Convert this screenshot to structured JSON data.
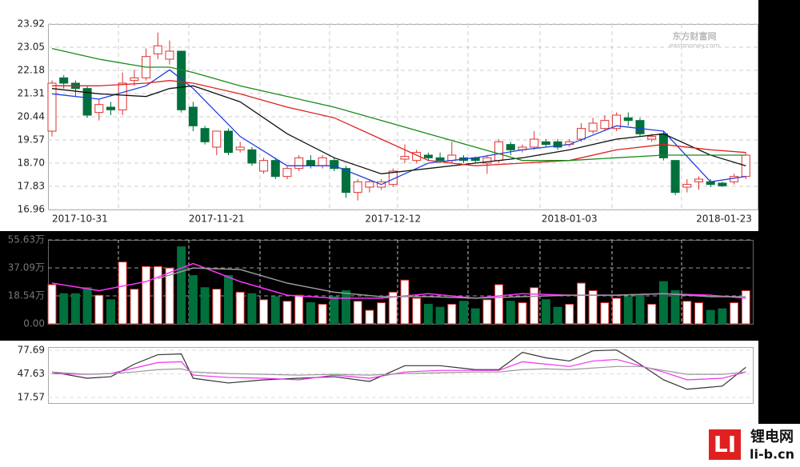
{
  "chart_data": {
    "type": "candlestick",
    "watermark": [
      "东方财富网",
      "eastmoney.com"
    ],
    "logo": [
      "锂电网",
      "li-b.cn"
    ],
    "categories": [
      "2017-10-31",
      null,
      null,
      null,
      null,
      null,
      null,
      null,
      null,
      null,
      null,
      null,
      null,
      null,
      "2017-11-21",
      null,
      null,
      null,
      null,
      null,
      null,
      null,
      null,
      null,
      null,
      null,
      null,
      null,
      null,
      "2017-12-12",
      null,
      null,
      null,
      null,
      null,
      null,
      null,
      null,
      null,
      null,
      null,
      null,
      null,
      null,
      "2018-01-03",
      null,
      null,
      null,
      null,
      null,
      null,
      null,
      null,
      null,
      null,
      null,
      null,
      null,
      null,
      "2018-01-23"
    ],
    "open": [
      19.9,
      21.9,
      21.7,
      21.5,
      20.6,
      20.8,
      20.7,
      21.8,
      21.9,
      22.8,
      22.6,
      22.9,
      20.8,
      20.0,
      19.3,
      19.9,
      19.2,
      19.2,
      18.4,
      18.8,
      18.2,
      18.5,
      18.8,
      18.6,
      18.8,
      18.5,
      17.6,
      17.8,
      17.8,
      17.9,
      18.85,
      18.8,
      19.0,
      18.9,
      18.8,
      18.9,
      18.9,
      18.7,
      18.8,
      19.4,
      19.2,
      19.3,
      19.5,
      19.5,
      19.4,
      19.6,
      19.9,
      20.0,
      20.0,
      20.4,
      20.3,
      19.6,
      19.8,
      18.8,
      17.8,
      18.0,
      18.0,
      17.95,
      18.0,
      18.2
    ],
    "high": [
      21.8,
      22.0,
      21.8,
      21.6,
      21.1,
      21.0,
      22.1,
      22.2,
      23.0,
      23.6,
      23.3,
      22.9,
      21.0,
      20.1,
      19.9,
      20.0,
      19.5,
      19.3,
      18.9,
      18.9,
      18.6,
      19.0,
      19.0,
      19.0,
      18.9,
      18.6,
      18.1,
      18.1,
      18.1,
      18.5,
      19.4,
      19.2,
      19.1,
      19.1,
      19.5,
      19.0,
      18.95,
      19.0,
      19.6,
      19.5,
      19.4,
      19.9,
      19.6,
      19.6,
      19.6,
      20.2,
      20.4,
      20.5,
      20.6,
      20.6,
      20.4,
      19.8,
      19.9,
      18.8,
      18.1,
      18.2,
      18.1,
      18.0,
      18.3,
      19.1
    ],
    "low": [
      19.7,
      21.5,
      21.2,
      20.4,
      20.3,
      20.5,
      20.5,
      21.6,
      21.8,
      22.6,
      22.4,
      20.6,
      19.9,
      19.4,
      19.0,
      19.0,
      19.1,
      18.6,
      18.3,
      18.1,
      18.1,
      18.4,
      18.5,
      18.5,
      18.4,
      17.4,
      17.3,
      17.6,
      17.7,
      17.8,
      18.7,
      18.7,
      18.8,
      18.7,
      18.7,
      18.7,
      18.7,
      18.3,
      18.7,
      19.0,
      19.1,
      19.2,
      19.3,
      19.2,
      19.3,
      19.5,
      19.8,
      19.9,
      19.9,
      20.1,
      19.7,
      19.5,
      18.8,
      17.5,
      17.6,
      17.7,
      17.8,
      17.8,
      17.9,
      18.1
    ],
    "close": [
      21.7,
      21.7,
      21.5,
      20.5,
      20.9,
      20.7,
      21.7,
      21.9,
      22.7,
      23.1,
      22.9,
      20.7,
      20.1,
      19.5,
      19.9,
      19.1,
      19.3,
      18.7,
      18.8,
      18.2,
      18.5,
      18.9,
      18.6,
      18.9,
      18.5,
      17.6,
      18.0,
      18.0,
      18.0,
      18.4,
      18.95,
      19.1,
      18.9,
      18.8,
      19.0,
      18.8,
      18.8,
      18.9,
      19.5,
      19.2,
      19.3,
      19.6,
      19.4,
      19.3,
      19.5,
      20.0,
      20.2,
      20.3,
      20.5,
      20.3,
      19.8,
      19.7,
      18.9,
      17.6,
      17.9,
      18.1,
      17.9,
      17.85,
      18.2,
      19.0
    ],
    "up_color": "#e0302f",
    "down_color": "#00703c",
    "ylim": [
      16.96,
      23.92
    ],
    "yticks": [
      16.96,
      17.83,
      {
        "value": 18.7,
        "label": "18.70"
      },
      19.57,
      20.44,
      21.31,
      22.18,
      23.05,
      23.92
    ],
    "series": [
      {
        "color": "#1f3fe0",
        "x": [
          0,
          4,
          8,
          10,
          12,
          16,
          20,
          24,
          28,
          32,
          36,
          40,
          44,
          48,
          52,
          56,
          59
        ],
        "values": [
          21.3,
          21.1,
          21.6,
          22.2,
          21.5,
          19.7,
          18.6,
          18.6,
          17.9,
          18.7,
          18.9,
          19.2,
          19.4,
          20.1,
          19.9,
          18.0,
          18.2
        ]
      },
      {
        "color": "#111111",
        "x": [
          0,
          4,
          8,
          10,
          12,
          16,
          20,
          24,
          28,
          32,
          36,
          40,
          44,
          48,
          52,
          56,
          59
        ],
        "values": [
          21.5,
          21.3,
          21.2,
          21.5,
          21.6,
          21.0,
          19.8,
          18.9,
          18.3,
          18.5,
          18.7,
          18.9,
          19.2,
          19.6,
          19.8,
          19.0,
          18.6
        ]
      },
      {
        "color": "#e02020",
        "x": [
          0,
          4,
          8,
          10,
          12,
          16,
          20,
          24,
          28,
          32,
          36,
          40,
          44,
          48,
          52,
          56,
          59
        ],
        "values": [
          21.6,
          21.6,
          21.7,
          21.8,
          21.7,
          21.3,
          20.8,
          20.4,
          19.6,
          18.8,
          18.6,
          18.7,
          18.8,
          19.2,
          19.4,
          19.2,
          19.1
        ]
      },
      {
        "color": "#1a8a1a",
        "x": [
          0,
          4,
          8,
          10,
          12,
          16,
          20,
          24,
          28,
          32,
          36,
          40,
          44,
          48,
          52,
          56,
          59
        ],
        "values": [
          23.0,
          22.6,
          22.3,
          22.3,
          22.1,
          21.6,
          21.2,
          20.8,
          20.3,
          19.8,
          19.3,
          18.8,
          18.8,
          18.9,
          19.0,
          19.0,
          19.0
        ]
      }
    ],
    "volume": [
      26,
      20,
      20,
      24,
      19,
      16,
      41,
      23,
      38,
      38,
      37,
      51,
      32,
      24,
      23,
      32,
      21,
      20,
      16,
      18,
      15,
      19,
      14,
      13,
      18,
      22,
      15,
      9,
      14,
      21,
      29,
      17,
      13,
      11,
      13,
      15,
      10,
      16,
      26,
      15,
      14,
      24,
      16,
      11,
      13,
      27,
      22,
      14,
      17,
      18,
      19,
      13,
      28,
      22,
      15,
      14,
      9,
      10,
      14,
      22
    ],
    "volume_ylim": [
      0,
      55.63
    ],
    "volume_yticks": [
      {
        "value": 0,
        "label": "0.00"
      },
      {
        "value": 18.54,
        "label": "18.54万"
      },
      {
        "value": 37.09,
        "label": "37.09万"
      },
      {
        "value": 55.63,
        "label": "55.63万"
      }
    ],
    "volume_series": [
      {
        "color": "#ff33ff",
        "x": [
          0,
          4,
          8,
          12,
          16,
          20,
          24,
          28,
          32,
          36,
          40,
          44,
          48,
          52,
          56,
          59
        ],
        "values": [
          27,
          22,
          28,
          40,
          28,
          19,
          17,
          17,
          20,
          17,
          20,
          19,
          19,
          20,
          19,
          17
        ]
      },
      {
        "color": "#999999",
        "x": [
          9,
          12,
          16,
          20,
          24,
          28,
          32,
          36,
          40,
          44,
          48,
          52,
          56,
          59
        ],
        "values": [
          30,
          37,
          36,
          27,
          21,
          18,
          18,
          17,
          18,
          19,
          19,
          20,
          18,
          18
        ]
      }
    ],
    "osc_ylim": [
      17.57,
      77.69
    ],
    "osc_yticks": [
      17.57,
      47.63,
      77.69
    ],
    "osc_series": [
      {
        "color": "#333333",
        "x": [
          0,
          3,
          5,
          7,
          9,
          11,
          12,
          15,
          18,
          21,
          24,
          27,
          30,
          33,
          36,
          38,
          40,
          42,
          44,
          46,
          48,
          50,
          52,
          54,
          57,
          59
        ],
        "values": [
          50,
          42,
          44,
          60,
          72,
          73,
          42,
          36,
          40,
          42,
          44,
          38,
          58,
          58,
          53,
          53,
          75,
          68,
          64,
          77,
          78,
          60,
          40,
          28,
          32,
          56
        ]
      },
      {
        "color": "#ee33ee",
        "x": [
          0,
          3,
          5,
          7,
          9,
          11,
          12,
          15,
          18,
          21,
          24,
          27,
          30,
          33,
          36,
          38,
          40,
          42,
          44,
          46,
          48,
          50,
          52,
          54,
          57,
          59
        ],
        "values": [
          48,
          47,
          48,
          55,
          62,
          63,
          46,
          43,
          42,
          40,
          46,
          42,
          50,
          52,
          52,
          52,
          63,
          60,
          57,
          64,
          66,
          58,
          50,
          40,
          42,
          50
        ]
      },
      {
        "color": "#999999",
        "x": [
          0,
          3,
          5,
          7,
          9,
          11,
          12,
          15,
          18,
          21,
          24,
          27,
          30,
          33,
          36,
          38,
          40,
          42,
          44,
          46,
          48,
          50,
          52,
          54,
          57,
          59
        ],
        "values": [
          50,
          47,
          48,
          50,
          53,
          54,
          50,
          48,
          47,
          46,
          47,
          46,
          48,
          49,
          50,
          50,
          53,
          54,
          53,
          55,
          57,
          57,
          52,
          47,
          47,
          50
        ]
      }
    ]
  }
}
